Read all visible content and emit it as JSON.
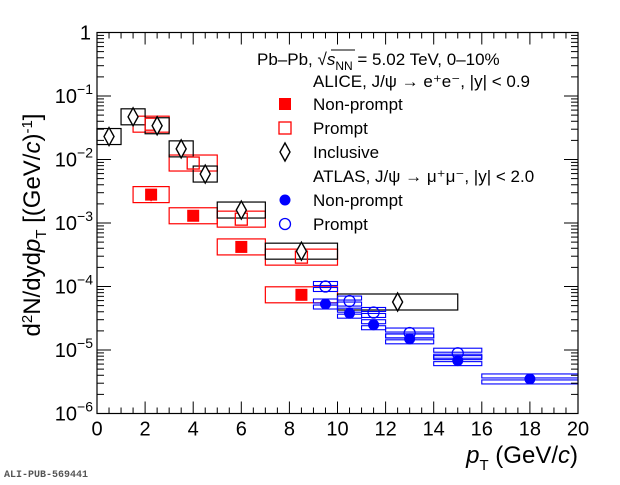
{
  "chart_data": {
    "type": "scatter",
    "title": "",
    "xlabel": "p_T (GeV/c)",
    "xlabel_parts": {
      "main": "p",
      "sub": "T",
      "unit": " (GeV/",
      "unit_italic": "c",
      "unit_end": ")"
    },
    "ylabel": "d²N/dydp_T [(GeV/c)⁻¹]",
    "x_range": [
      0,
      20
    ],
    "y_range": [
      1e-06,
      1
    ],
    "y_scale": "log",
    "x_ticks": [
      "0",
      "2",
      "4",
      "6",
      "8",
      "10",
      "12",
      "14",
      "16",
      "18",
      "20"
    ],
    "y_ticks": [
      {
        "base": "1",
        "exp": ""
      },
      {
        "base": "10",
        "exp": "−1"
      },
      {
        "base": "10",
        "exp": "−2"
      },
      {
        "base": "10",
        "exp": "−3"
      },
      {
        "base": "10",
        "exp": "−4"
      },
      {
        "base": "10",
        "exp": "−5"
      },
      {
        "base": "10",
        "exp": "−6"
      }
    ],
    "legend_position": "top-right",
    "legend_header": "Pb–Pb, √s_NN = 5.02 TeV, 0–10%",
    "legend_groups": [
      {
        "title": "ALICE, J/ψ → e⁺e⁻, |y| < 0.9"
      },
      {
        "title": "ATLAS, J/ψ → μ⁺μ⁻, |y| < 2.0"
      }
    ],
    "series": [
      {
        "name": "ALICE Non-prompt",
        "legend": "Non-prompt",
        "marker": "filled-square",
        "color": "#ff0000",
        "points": [
          {
            "x": 2.25,
            "xlo": 1.5,
            "xhi": 3.0,
            "y": 0.0028,
            "stat": 0.0006
          },
          {
            "x": 4.0,
            "xlo": 3.0,
            "xhi": 5.0,
            "y": 0.0013,
            "stat": 5e-05
          },
          {
            "x": 6.0,
            "xlo": 5.0,
            "xhi": 7.0,
            "y": 0.00042,
            "stat": 2e-05
          },
          {
            "x": 8.5,
            "xlo": 7.0,
            "xhi": 10.0,
            "y": 7.4e-05,
            "stat": 4e-06
          }
        ]
      },
      {
        "name": "ALICE Prompt",
        "legend": "Prompt",
        "marker": "open-square",
        "color": "#ff0000",
        "points": [
          {
            "x": 2.25,
            "xlo": 1.5,
            "xhi": 3.0,
            "y": 0.036
          },
          {
            "x": 4.0,
            "xlo": 3.0,
            "xhi": 5.0,
            "y": 0.0088
          },
          {
            "x": 6.0,
            "xlo": 5.0,
            "xhi": 7.0,
            "y": 0.00115
          },
          {
            "x": 8.5,
            "xlo": 7.0,
            "xhi": 10.0,
            "y": 0.00029
          }
        ]
      },
      {
        "name": "ALICE Inclusive",
        "legend": "Inclusive",
        "marker": "open-diamond",
        "color": "#000000",
        "points": [
          {
            "x": 0.5,
            "xlo": 0.0,
            "xhi": 1.0,
            "y": 0.023
          },
          {
            "x": 1.5,
            "xlo": 1.0,
            "xhi": 2.0,
            "y": 0.047
          },
          {
            "x": 2.5,
            "xlo": 2.0,
            "xhi": 3.0,
            "y": 0.034
          },
          {
            "x": 3.5,
            "xlo": 3.0,
            "xhi": 4.0,
            "y": 0.0147
          },
          {
            "x": 4.5,
            "xlo": 4.0,
            "xhi": 5.0,
            "y": 0.0059
          },
          {
            "x": 6.0,
            "xlo": 5.0,
            "xhi": 7.0,
            "y": 0.0016
          },
          {
            "x": 8.5,
            "xlo": 7.0,
            "xhi": 10.0,
            "y": 0.00036
          },
          {
            "x": 12.5,
            "xlo": 10.0,
            "xhi": 15.0,
            "y": 5.7e-05
          }
        ]
      },
      {
        "name": "ATLAS Non-prompt",
        "legend": "Non-prompt",
        "marker": "filled-circle",
        "color": "#0000ff",
        "points": [
          {
            "x": 9.5,
            "xlo": 9.0,
            "xhi": 10.0,
            "y": 5.3e-05
          },
          {
            "x": 10.5,
            "xlo": 10.0,
            "xhi": 11.0,
            "y": 3.8e-05
          },
          {
            "x": 11.5,
            "xlo": 11.0,
            "xhi": 12.0,
            "y": 2.5e-05
          },
          {
            "x": 13.0,
            "xlo": 12.0,
            "xhi": 14.0,
            "y": 1.5e-05
          },
          {
            "x": 15.0,
            "xlo": 14.0,
            "xhi": 16.0,
            "y": 6.8e-06
          },
          {
            "x": 18.0,
            "xlo": 16.0,
            "xhi": 20.0,
            "y": 3.5e-06
          }
        ]
      },
      {
        "name": "ATLAS Prompt",
        "legend": "Prompt",
        "marker": "open-circle",
        "color": "#0000ff",
        "points": [
          {
            "x": 9.5,
            "xlo": 9.0,
            "xhi": 10.0,
            "y": 0.0001
          },
          {
            "x": 10.5,
            "xlo": 10.0,
            "xhi": 11.0,
            "y": 5.9e-05
          },
          {
            "x": 11.5,
            "xlo": 11.0,
            "xhi": 12.0,
            "y": 3.9e-05
          },
          {
            "x": 13.0,
            "xlo": 12.0,
            "xhi": 14.0,
            "y": 1.85e-05
          },
          {
            "x": 15.0,
            "xlo": 14.0,
            "xhi": 16.0,
            "y": 8.9e-06
          }
        ]
      }
    ]
  },
  "footer": "ALI-PUB-569441"
}
